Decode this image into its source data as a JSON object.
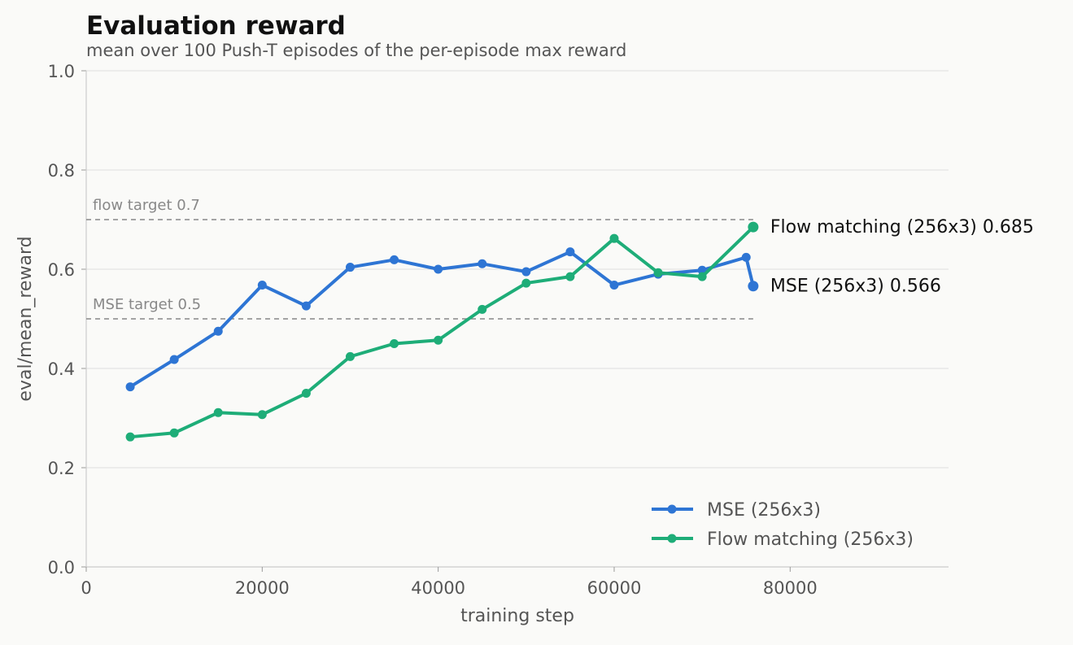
{
  "chart_data": {
    "type": "line",
    "title": "Evaluation reward",
    "subtitle": "mean over 100 Push-T episodes of the per-episode max reward",
    "xlabel": "training step",
    "ylabel": "eval/mean_reward",
    "xlim": [
      0,
      98000
    ],
    "ylim": [
      0,
      1.0
    ],
    "xticks": [
      0,
      20000,
      40000,
      60000,
      80000
    ],
    "yticks": [
      0.0,
      0.2,
      0.4,
      0.6,
      0.8,
      1.0
    ],
    "xtick_labels": [
      "0",
      "20000",
      "40000",
      "60000",
      "80000"
    ],
    "ytick_labels": [
      "0.0",
      "0.2",
      "0.4",
      "0.6",
      "0.8",
      "1.0"
    ],
    "grid": "horizontal",
    "legend_position": "bottom-right",
    "reference_lines": [
      {
        "label": "flow target 0.7",
        "y": 0.7,
        "x_end": 75800
      },
      {
        "label": "MSE target 0.5",
        "y": 0.5,
        "x_end": 75800
      }
    ],
    "series": [
      {
        "name": "MSE (256x3)",
        "color": "#2e75d4",
        "x": [
          5000,
          10000,
          15000,
          20000,
          25000,
          30000,
          35000,
          40000,
          45000,
          50000,
          55000,
          60000,
          65000,
          70000,
          75000,
          75800
        ],
        "values": [
          0.363,
          0.418,
          0.475,
          0.568,
          0.526,
          0.604,
          0.619,
          0.6,
          0.611,
          0.595,
          0.635,
          0.568,
          0.59,
          0.598,
          0.624,
          0.566
        ],
        "end_label": "MSE (256x3)  0.566"
      },
      {
        "name": "Flow matching (256x3)",
        "color": "#1ead78",
        "x": [
          5000,
          10000,
          15000,
          20000,
          25000,
          30000,
          35000,
          40000,
          45000,
          50000,
          55000,
          60000,
          65000,
          70000,
          75800
        ],
        "values": [
          0.262,
          0.27,
          0.311,
          0.307,
          0.35,
          0.424,
          0.45,
          0.457,
          0.519,
          0.572,
          0.585,
          0.662,
          0.593,
          0.585,
          0.685
        ],
        "end_label": "Flow matching (256x3)  0.685"
      }
    ]
  }
}
